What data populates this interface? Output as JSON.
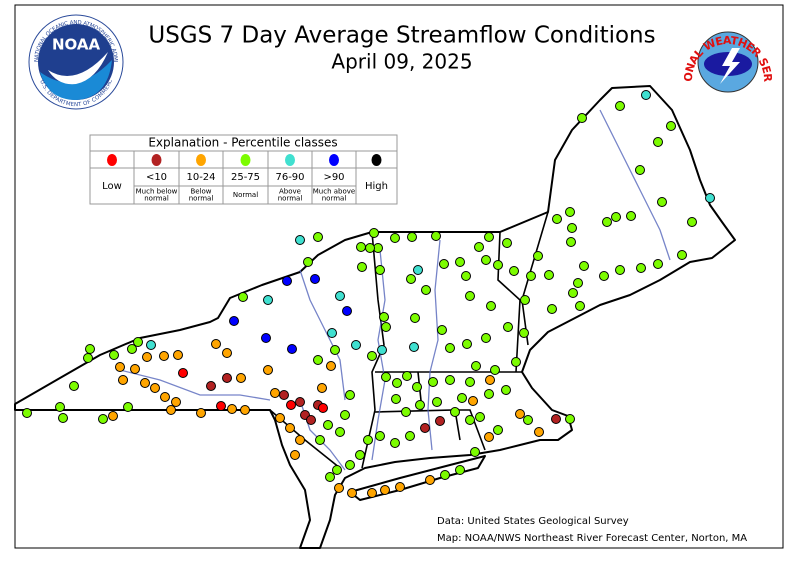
{
  "title": "USGS 7 Day Average Streamflow Conditions",
  "subtitle": "April 09, 2025",
  "legend": {
    "title": "Explanation - Percentile classes",
    "classes": [
      {
        "range": "Low",
        "color": "#ff0000"
      },
      {
        "range": "<10",
        "description": [
          "Much below",
          "normal"
        ],
        "color": "#b22222"
      },
      {
        "range": "10-24",
        "description": [
          "Below",
          "normal"
        ],
        "color": "#ffa500"
      },
      {
        "range": "25-75",
        "description": [
          "Normal"
        ],
        "color": "#7cfc00"
      },
      {
        "range": "76-90",
        "description": [
          "Above",
          "normal"
        ],
        "color": "#40e0d0"
      },
      {
        "range": ">90",
        "description": [
          "Much above",
          "normal"
        ],
        "color": "#0000ff"
      },
      {
        "range": "High",
        "color": "#000000"
      }
    ]
  },
  "credits": [
    "Data: United States Geological Survey",
    "Map: NOAA/NWS Northeast River Forecast Center, Norton, MA"
  ],
  "logos": {
    "noaa": "NOAA",
    "noaa_ring_top": "NATIONAL OCEANIC AND ATMOSPHERIC ADMINISTRATION",
    "noaa_ring_bottom": "U.S. DEPARTMENT OF COMMERCE",
    "nws": "NATIONAL WEATHER SERVICE"
  }
}
